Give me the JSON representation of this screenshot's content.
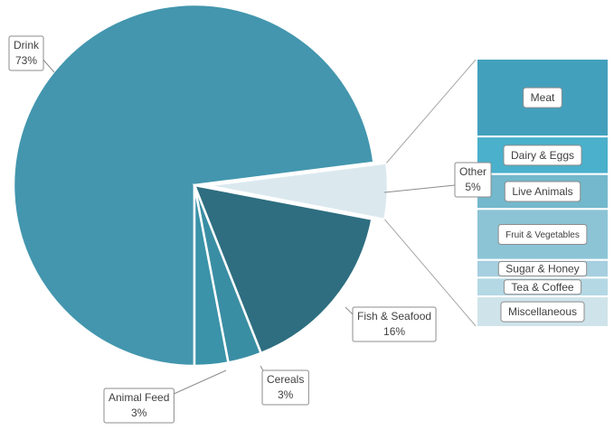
{
  "chart_data": {
    "type": "bar-of-pie",
    "categories": [
      "Drink",
      "Other",
      "Fish & Seafood",
      "Cereals",
      "Animal Feed"
    ],
    "values": [
      73,
      5,
      16,
      3,
      3
    ],
    "value_labels": [
      "73%",
      "5%",
      "16%",
      "3%",
      "3%"
    ],
    "colors": [
      "#4396ae",
      "#dbe9ef",
      "#2e6e80",
      "#3a8ea3",
      "#3a93a8"
    ],
    "breakdown": {
      "categories": [
        "Meat",
        "Dairy & Eggs",
        "Live Animals",
        "Fruit & Vegetables",
        "Sugar & Honey",
        "Tea & Coffee",
        "Miscellaneous"
      ],
      "values": [
        1.45,
        0.7,
        0.65,
        0.95,
        0.33,
        0.35,
        0.57
      ],
      "colors": [
        "#43a0bc",
        "#4ab0cb",
        "#73b8cc",
        "#8cc4d6",
        "#a6cfdf",
        "#b4d8e4",
        "#cfe3ea"
      ]
    }
  }
}
